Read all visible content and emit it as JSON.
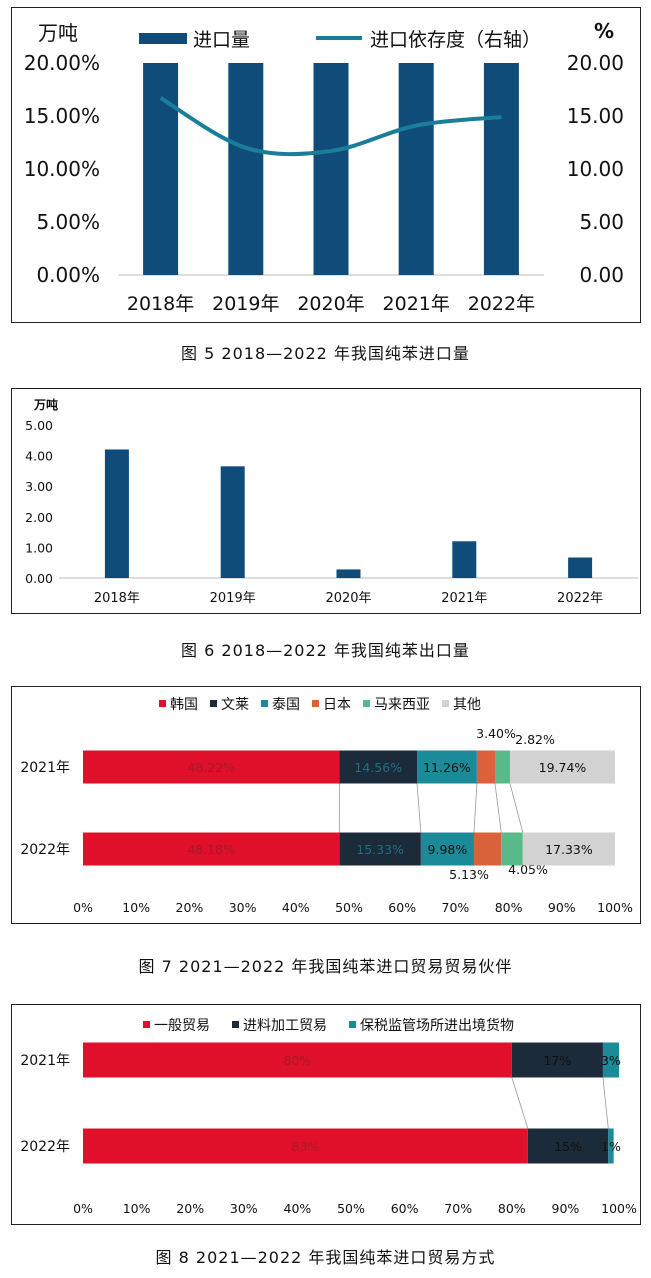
{
  "colors": {
    "dark_blue": "#0f4c7a",
    "teal_line": "#1a7e99",
    "korea_red": "#e0102a",
    "brunei_navy": "#1c2b3a",
    "thailand_teal": "#1b8a99",
    "japan_orange": "#d9623b",
    "malaysia_green": "#5ab98a",
    "other_gray": "#d2d2d2"
  },
  "figures": [
    {
      "caption": "图 5  2018—2022 年我国纯苯进口量"
    },
    {
      "caption": "图 6  2018—2022 年我国纯苯出口量"
    },
    {
      "caption": "图 7  2021—2022 年我国纯苯进口贸易贸易伙伴"
    },
    {
      "caption": "图 8  2021—2022 年我国纯苯进口贸易方式"
    }
  ],
  "chart_data": [
    {
      "type": "bar",
      "ylabel": "万吨",
      "y2label": "%",
      "categories": [
        "2018年",
        "2019年",
        "2020年",
        "2021年",
        "2022年"
      ],
      "y_ticks": [
        "0.00%",
        "5.00%",
        "10.00%",
        "15.00%",
        "20.00%"
      ],
      "y2_ticks": [
        "0.00",
        "5.00",
        "10.00",
        "15.00",
        "20.00"
      ],
      "ylim": [
        0,
        20
      ],
      "series": [
        {
          "name": "进口量",
          "type": "bar",
          "values": [
            20,
            20,
            20,
            20,
            20
          ]
        },
        {
          "name": "进口依存度（右轴）",
          "type": "line",
          "axis": "right",
          "values": [
            16.7,
            12.0,
            11.7,
            14.1,
            14.9
          ]
        }
      ]
    },
    {
      "type": "bar",
      "ylabel": "万吨",
      "categories": [
        "2018年",
        "2019年",
        "2020年",
        "2021年",
        "2022年"
      ],
      "y_ticks": [
        "0.00",
        "1.00",
        "2.00",
        "3.00",
        "4.00",
        "5.00"
      ],
      "ylim": [
        0,
        5
      ],
      "values": [
        4.2,
        3.65,
        0.28,
        1.2,
        0.67
      ]
    },
    {
      "type": "bar",
      "orientation": "horizontal-stacked-100",
      "categories": [
        "2021年",
        "2022年"
      ],
      "x_ticks": [
        "0%",
        "10%",
        "20%",
        "30%",
        "40%",
        "50%",
        "60%",
        "70%",
        "80%",
        "90%",
        "100%"
      ],
      "series": [
        {
          "name": "韩国",
          "values": [
            48.22,
            48.18
          ],
          "labels": [
            "48.22%",
            "48.18%"
          ]
        },
        {
          "name": "文莱",
          "values": [
            14.56,
            15.33
          ],
          "labels": [
            "14.56%",
            "15.33%"
          ]
        },
        {
          "name": "泰国",
          "values": [
            11.26,
            9.98
          ],
          "labels": [
            "11.26%",
            "9.98%"
          ]
        },
        {
          "name": "日本",
          "values": [
            3.4,
            5.13
          ],
          "labels": [
            "3.40%",
            "5.13%"
          ]
        },
        {
          "name": "马来西亚",
          "values": [
            2.82,
            4.05
          ],
          "labels": [
            "2.82%",
            "4.05%"
          ]
        },
        {
          "name": "其他",
          "values": [
            19.74,
            17.33
          ],
          "labels": [
            "19.74%",
            "17.33%"
          ]
        }
      ]
    },
    {
      "type": "bar",
      "orientation": "horizontal-stacked-100",
      "categories": [
        "2021年",
        "2022年"
      ],
      "x_ticks": [
        "0%",
        "10%",
        "20%",
        "30%",
        "40%",
        "50%",
        "60%",
        "70%",
        "80%",
        "90%",
        "100%"
      ],
      "series": [
        {
          "name": "一般贸易",
          "values": [
            80,
            83
          ],
          "labels": [
            "80%",
            "83%"
          ]
        },
        {
          "name": "进料加工贸易",
          "values": [
            17,
            15
          ],
          "labels": [
            "17%",
            "15%"
          ]
        },
        {
          "name": "保税监管场所进出境货物",
          "values": [
            3,
            1
          ],
          "labels": [
            "3%",
            "1%"
          ]
        }
      ]
    }
  ]
}
